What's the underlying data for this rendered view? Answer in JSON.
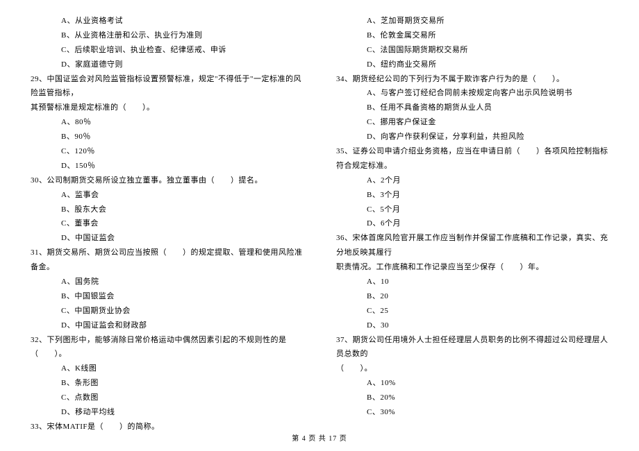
{
  "leftColumn": {
    "q28_options": {
      "a": "A、从业资格考试",
      "b": "B、从业资格注册和公示、执业行为准则",
      "c": "C、后续职业培训、执业检查、纪律惩戒、申诉",
      "d": "D、家庭道德守则"
    },
    "q29": {
      "text": "29、中国证监会对风险监管指标设置预警标准，规定\"不得低于\"一定标准的风险监管指标，",
      "cont": "其预警标准是规定标准的（　　）。",
      "a": "A、80％",
      "b": "B、90％",
      "c": "C、120％",
      "d": "D、150％"
    },
    "q30": {
      "text": "30、公司制期货交易所设立独立董事。独立董事由（　　）提名。",
      "a": "A、监事会",
      "b": "B、股东大会",
      "c": "C、董事会",
      "d": "D、中国证监会"
    },
    "q31": {
      "text": "31、期货交易所、期货公司应当按照（　　）的规定提取、管理和使用风险准备金。",
      "a": "A、国务院",
      "b": "B、中国银监会",
      "c": "C、中国期货业协会",
      "d": "D、中国证监会和财政部"
    },
    "q32": {
      "text": "32、下列图形中，能够消除日常价格运动中偶然因素引起的不规则性的是（　　）。",
      "a": "A、K线图",
      "b": "B、条形图",
      "c": "C、点数图",
      "d": "D、移动平均线"
    },
    "q33": {
      "text": "33、宋体MATIF是（　　）的简称。"
    }
  },
  "rightColumn": {
    "q33_options": {
      "a": "A、芝加哥期货交易所",
      "b": "B、伦敦金属交易所",
      "c": "C、法国国际期货期权交易所",
      "d": "D、纽约商业交易所"
    },
    "q34": {
      "text": "34、期货经纪公司的下列行为不属于欺诈客户行为的是（　　）。",
      "a": "A、与客户签订经纪合同前未按规定向客户出示风险说明书",
      "b": "B、任用不具备资格的期货从业人员",
      "c": "C、挪用客户保证金",
      "d": "D、向客户作获利保证，分享利益，共担风险"
    },
    "q35": {
      "text": "35、证券公司申请介绍业务资格，应当在申请日前（　　）各项风险控制指标符合规定标准。",
      "a": "A、2个月",
      "b": "B、3个月",
      "c": "C、5个月",
      "d": "D、6个月"
    },
    "q36": {
      "text": "36、宋体首席风险官开展工作应当制作并保留工作底稿和工作记录，真实、充分地反映其履行",
      "cont": "职责情况。工作底稿和工作记录应当至少保存（　　）年。",
      "a": "A、10",
      "b": "B、20",
      "c": "C、25",
      "d": "D、30"
    },
    "q37": {
      "text": "37、期货公司任用境外人士担任经理层人员职务的比例不得超过公司经理层人员总数的",
      "cont": "（　　）。",
      "a": "A、10%",
      "b": "B、20%",
      "c": "C、30%"
    }
  },
  "footer": "第 4 页 共 17 页"
}
